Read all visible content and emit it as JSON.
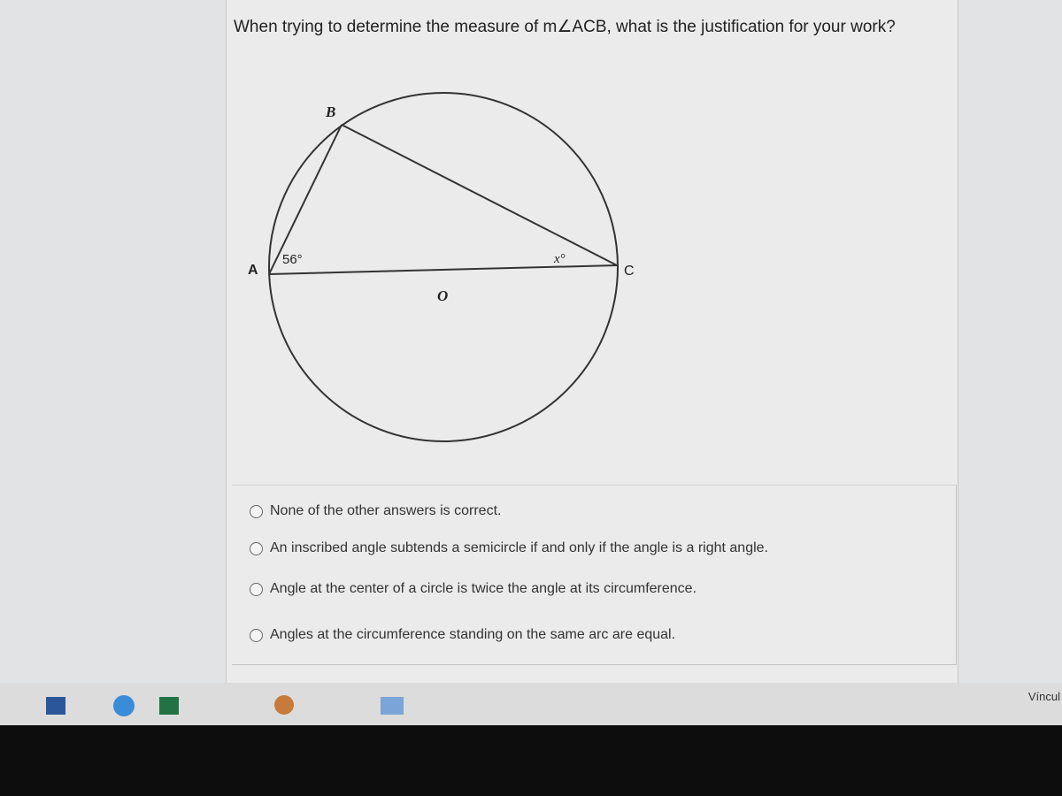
{
  "question": "When trying to determine the measure of m∠ACB, what is the justification for your work?",
  "diagram": {
    "labels": {
      "b": "B",
      "a": "A",
      "c": "C",
      "o": "O",
      "angle_a": "56°",
      "angle_c": "x°"
    }
  },
  "options": [
    "None of the other answers is correct.",
    "An inscribed angle subtends a semicircle if and only if the angle is a right angle.",
    "Angle at the center of a circle is twice the angle at its circumference.",
    "Angles at the circumference standing on the same arc are equal."
  ],
  "taskbar": {
    "edge_label": "Víncul"
  }
}
